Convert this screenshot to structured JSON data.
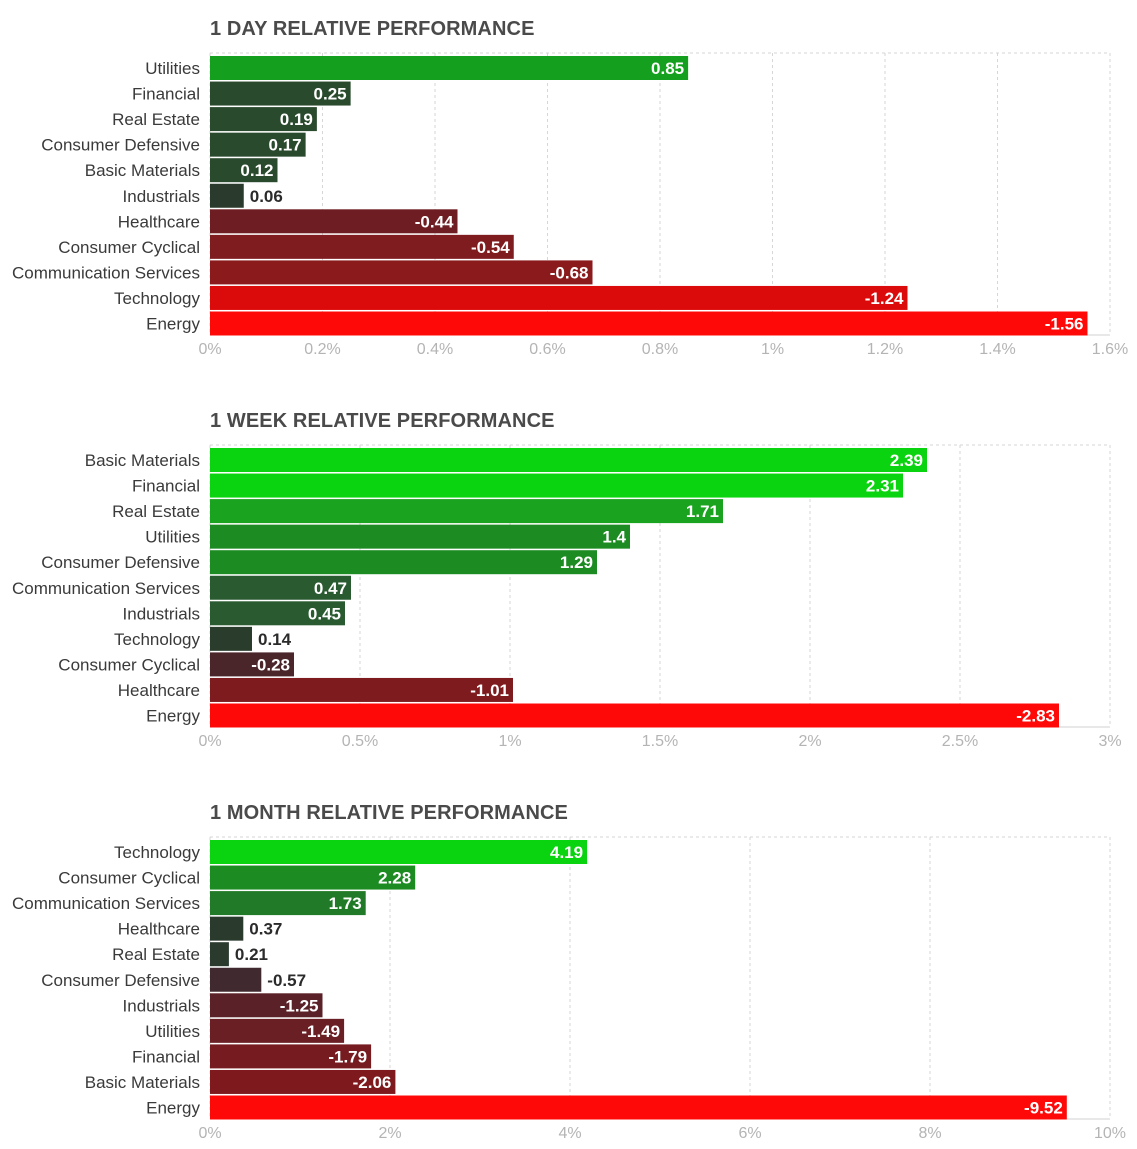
{
  "chart_data": [
    {
      "type": "bar",
      "orientation": "horizontal",
      "title": "1 DAY RELATIVE PERFORMANCE",
      "categories": [
        "Utilities",
        "Financial",
        "Real Estate",
        "Consumer Defensive",
        "Basic Materials",
        "Industrials",
        "Healthcare",
        "Consumer Cyclical",
        "Communication Services",
        "Technology",
        "Energy"
      ],
      "values": [
        0.85,
        0.25,
        0.19,
        0.17,
        0.12,
        0.06,
        -0.44,
        -0.54,
        -0.68,
        -1.24,
        -1.56
      ],
      "value_labels": [
        "0.85",
        "0.25",
        "0.19",
        "0.17",
        "0.12",
        "0.06",
        "-0.44",
        "-0.54",
        "-0.68",
        "-1.24",
        "-1.56"
      ],
      "xlim": [
        0,
        1.6
      ],
      "ticks": [
        0,
        0.2,
        0.4,
        0.6,
        0.8,
        1,
        1.2,
        1.4,
        1.6
      ],
      "tick_labels": [
        "0%",
        "0.2%",
        "0.4%",
        "0.6%",
        "0.8%",
        "1%",
        "1.2%",
        "1.4%",
        "1.6%"
      ],
      "bar_length": "absolute value",
      "grid": true,
      "colors": [
        "#14a01e",
        "#2a4a2e",
        "#2a4a2e",
        "#2a4a2e",
        "#2a4a2e",
        "#2a3a2d",
        "#6e1e22",
        "#7e1c1f",
        "#8a1a1c",
        "#dc0b0b",
        "#ff0808"
      ]
    },
    {
      "type": "bar",
      "orientation": "horizontal",
      "title": "1 WEEK RELATIVE PERFORMANCE",
      "categories": [
        "Basic Materials",
        "Financial",
        "Real Estate",
        "Utilities",
        "Consumer Defensive",
        "Communication Services",
        "Industrials",
        "Technology",
        "Consumer Cyclical",
        "Healthcare",
        "Energy"
      ],
      "values": [
        2.39,
        2.31,
        1.71,
        1.4,
        1.29,
        0.47,
        0.45,
        0.14,
        -0.28,
        -1.01,
        -2.83
      ],
      "value_labels": [
        "2.39",
        "2.31",
        "1.71",
        "1.4",
        "1.29",
        "0.47",
        "0.45",
        "0.14",
        "-0.28",
        "-1.01",
        "-2.83"
      ],
      "xlim": [
        0,
        3
      ],
      "ticks": [
        0,
        0.5,
        1,
        1.5,
        2,
        2.5,
        3
      ],
      "tick_labels": [
        "0%",
        "0.5%",
        "1%",
        "1.5%",
        "2%",
        "2.5%",
        "3%"
      ],
      "bar_length": "absolute value",
      "grid": true,
      "colors": [
        "#0ad30f",
        "#0ad30f",
        "#19a31f",
        "#1c8b22",
        "#1c8b22",
        "#2a5a30",
        "#2a5a30",
        "#2a3d2d",
        "#4a262b",
        "#7d1b1f",
        "#ff0808"
      ]
    },
    {
      "type": "bar",
      "orientation": "horizontal",
      "title": "1 MONTH RELATIVE PERFORMANCE",
      "categories": [
        "Technology",
        "Consumer Cyclical",
        "Communication Services",
        "Healthcare",
        "Real Estate",
        "Consumer Defensive",
        "Industrials",
        "Utilities",
        "Financial",
        "Basic Materials",
        "Energy"
      ],
      "values": [
        4.19,
        2.28,
        1.73,
        0.37,
        0.21,
        -0.57,
        -1.25,
        -1.49,
        -1.79,
        -2.06,
        -9.52
      ],
      "value_labels": [
        "4.19",
        "2.28",
        "1.73",
        "0.37",
        "0.21",
        "-0.57",
        "-1.25",
        "-1.49",
        "-1.79",
        "-2.06",
        "-9.52"
      ],
      "xlim": [
        0,
        10
      ],
      "ticks": [
        0,
        2,
        4,
        6,
        8,
        10
      ],
      "tick_labels": [
        "0%",
        "2%",
        "4%",
        "6%",
        "8%",
        "10%"
      ],
      "bar_length": "absolute value",
      "grid": true,
      "colors": [
        "#0ad30f",
        "#1c8b22",
        "#207a27",
        "#2a3a2d",
        "#2a3a2d",
        "#402a30",
        "#5a2228",
        "#6a1f24",
        "#761c20",
        "#7e1a1e",
        "#ff0808"
      ]
    }
  ]
}
